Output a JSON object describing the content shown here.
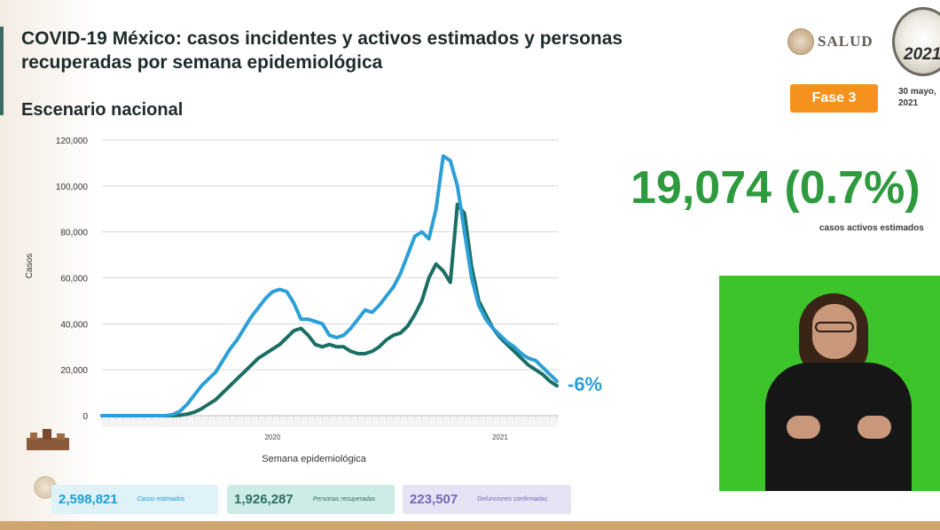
{
  "header": {
    "title": "COVID-19 México: casos incidentes y activos estimados y personas recuperadas por semana epidemiológica",
    "subtitle": "Escenario nacional",
    "logo_text": "SALUD",
    "seal_year": "2021",
    "phase_badge": "Fase 3",
    "date": "30 mayo, 2021"
  },
  "highlight": {
    "value": "19,074 (0.7%)",
    "caption": "casos activos estimados"
  },
  "chart_data": {
    "type": "line",
    "title": "",
    "xlabel": "Semana epidemiológica",
    "ylabel": "Casos",
    "ylim": [
      0,
      120000
    ],
    "yticks": [
      0,
      20000,
      40000,
      60000,
      80000,
      100000,
      120000
    ],
    "ytick_labels": [
      "0",
      "20,000",
      "40,000",
      "60,000",
      "80,000",
      "100,000",
      "120,000"
    ],
    "x_labels": [
      {
        "label": "2020",
        "week": 24
      },
      {
        "label": "2021",
        "week": 56
      }
    ],
    "week_count": 65,
    "grid": true,
    "annotation": "-6%",
    "series": [
      {
        "values": [
          0,
          0,
          0,
          0,
          0,
          0,
          0,
          0,
          0,
          0,
          500,
          2000,
          5000,
          9000,
          13000,
          16000,
          19000,
          24000,
          29000,
          33000,
          38000,
          43000,
          47000,
          51000,
          54000,
          55000,
          54000,
          49000,
          42000,
          42000,
          41000,
          40000,
          35000,
          34000,
          35000,
          38000,
          42000,
          46000,
          45000,
          48000,
          52000,
          56000,
          62000,
          70000,
          78000,
          80000,
          77000,
          90000,
          113000,
          111000,
          100000,
          80000,
          60000,
          48000,
          42000,
          38000,
          35000,
          32000,
          30000,
          27000,
          25000,
          24000,
          21000,
          18000,
          15000
        ],
        "color": "#2b9fd6"
      },
      {
        "values": [
          0,
          0,
          0,
          0,
          0,
          0,
          0,
          0,
          0,
          0,
          0,
          200,
          700,
          1500,
          3000,
          5000,
          7000,
          10000,
          13000,
          16000,
          19000,
          22000,
          25000,
          27000,
          29000,
          31000,
          34000,
          37000,
          38000,
          35000,
          31000,
          30000,
          31000,
          30000,
          30000,
          28000,
          27000,
          27000,
          28000,
          30000,
          33000,
          35000,
          36000,
          39000,
          44000,
          50000,
          60000,
          66000,
          63000,
          58000,
          92000,
          88000,
          65000,
          50000,
          44000,
          38000,
          34000,
          31000,
          28000,
          25000,
          22000,
          20000,
          18000,
          15000,
          13000
        ],
        "color": "#1a6e63"
      }
    ]
  },
  "summary": {
    "cases": {
      "value": "2,598,821",
      "label": "Casos estimados"
    },
    "recovered": {
      "value": "1,926,287",
      "label": "Personas recuperadas"
    },
    "deaths": {
      "value": "223,507",
      "label": "Defunciones confirmadas"
    }
  },
  "colors": {
    "cases": "#2b9fd6",
    "recovered": "#1a6e63",
    "highlight_green": "#2e9a3e",
    "phase_orange": "#f5921e"
  }
}
